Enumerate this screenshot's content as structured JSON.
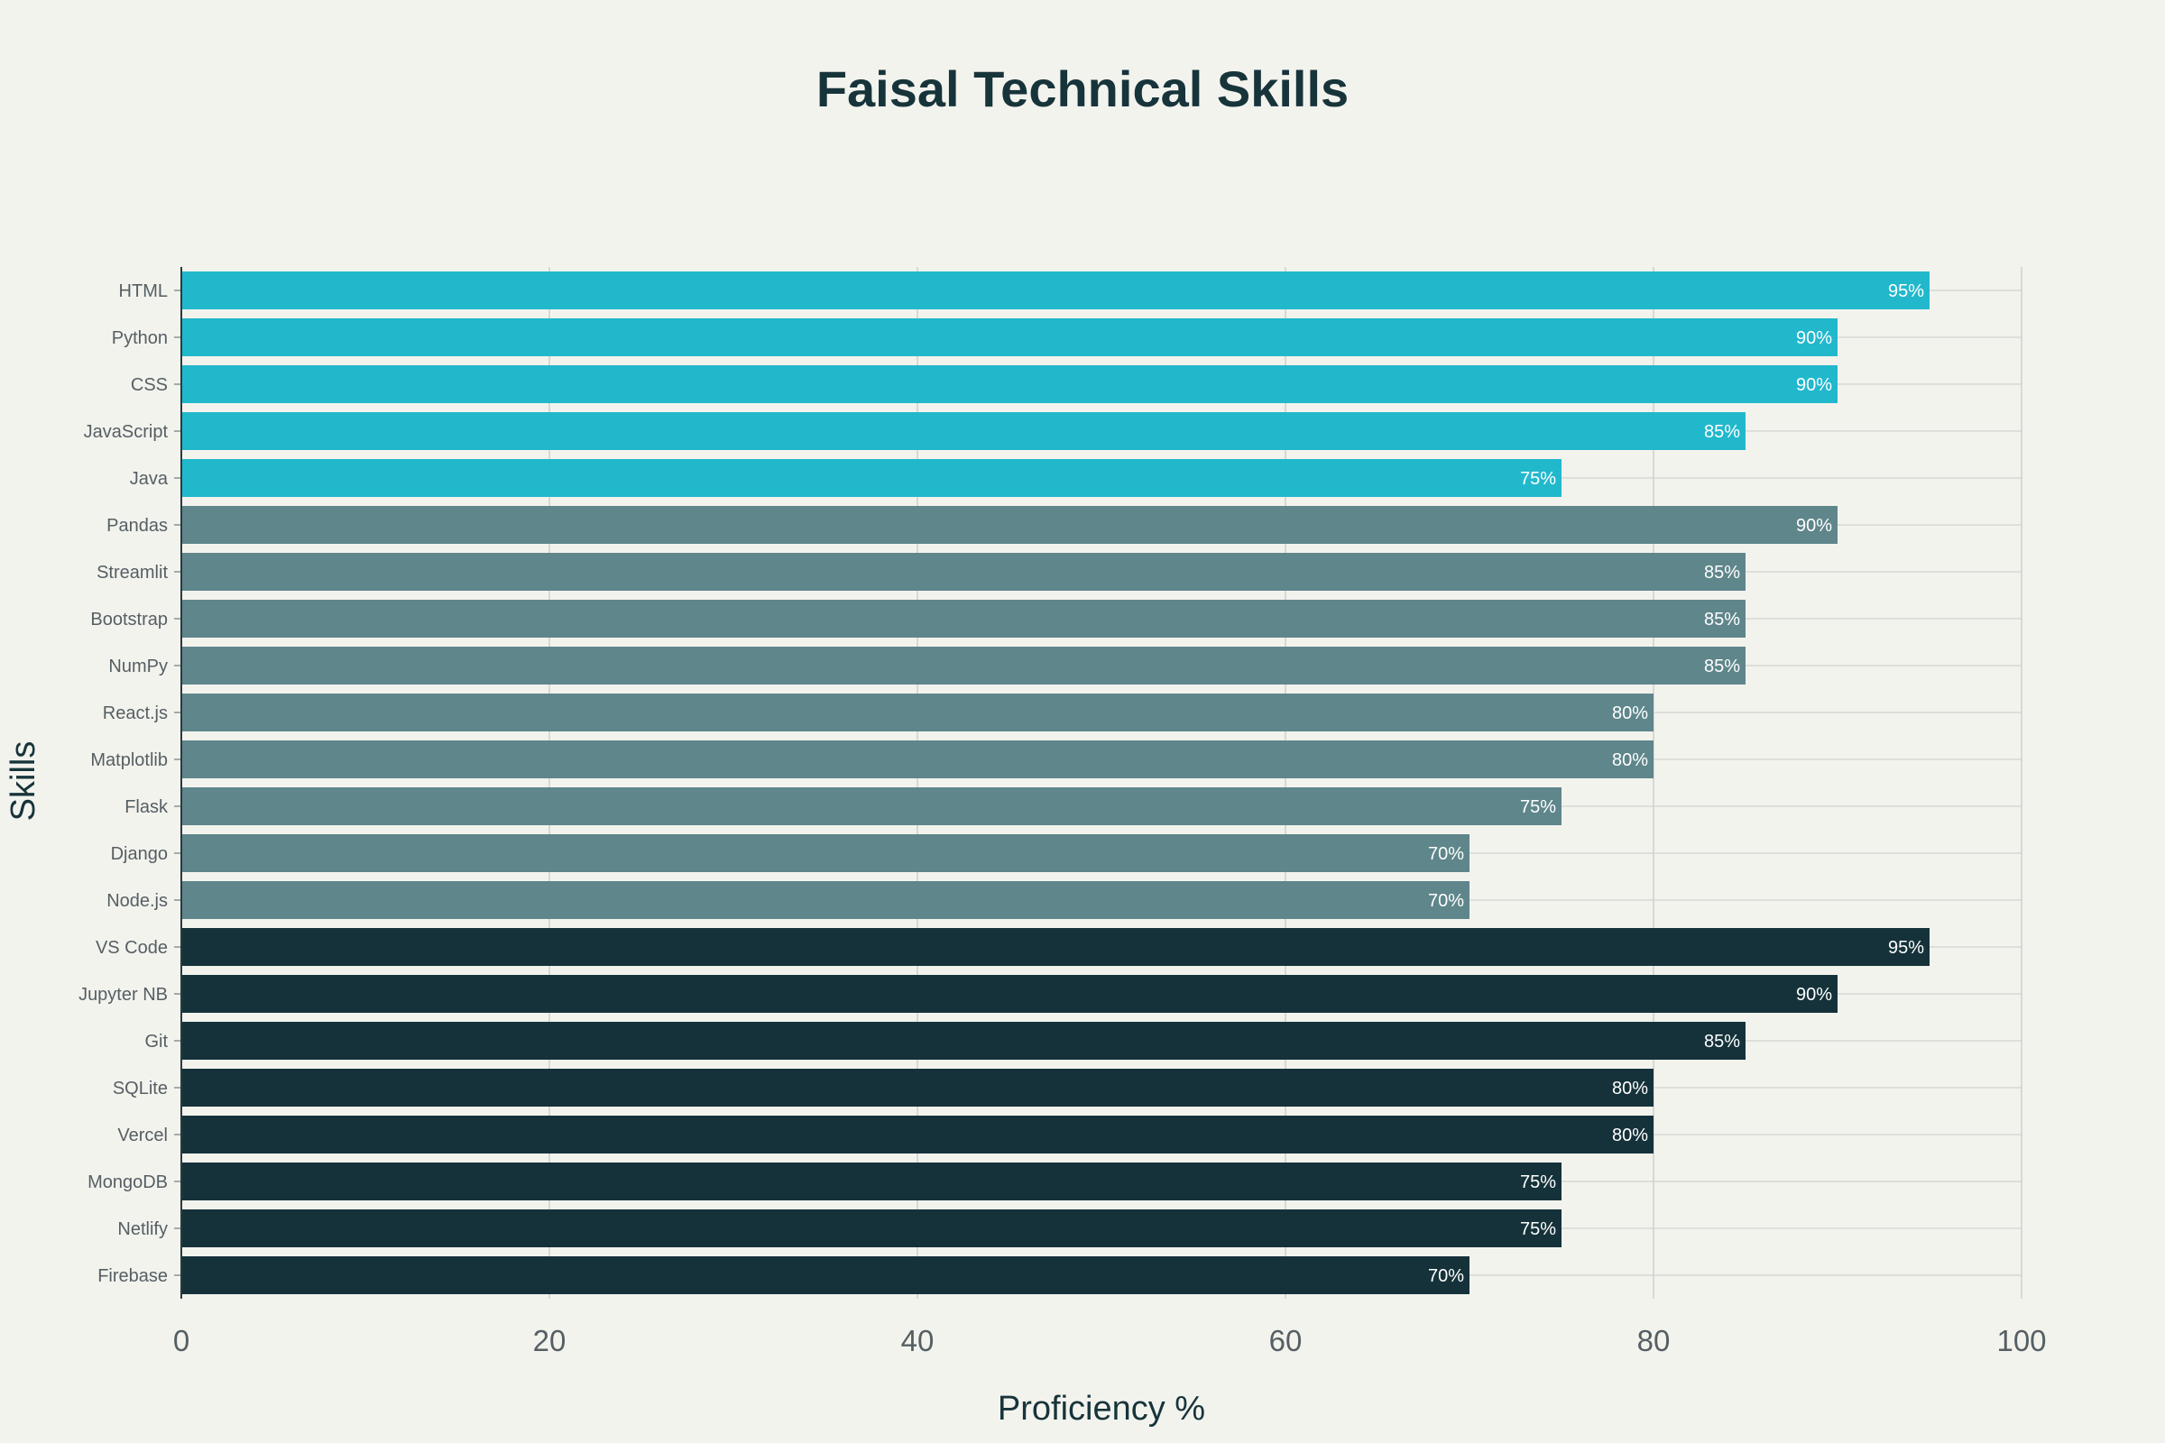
{
  "chart_data": {
    "type": "bar",
    "orientation": "horizontal",
    "title": "Faisal Technical Skills",
    "xlabel": "Proficiency %",
    "ylabel": "Skills",
    "xlim": [
      0,
      100
    ],
    "x_ticks": [
      0,
      20,
      40,
      60,
      80,
      100
    ],
    "value_suffix": "%",
    "grid": true,
    "legend": "none",
    "categories": [
      "HTML",
      "Python",
      "CSS",
      "JavaScript",
      "Java",
      "Pandas",
      "Streamlit",
      "Bootstrap",
      "NumPy",
      "React.js",
      "Matplotlib",
      "Flask",
      "Django",
      "Node.js",
      "VS Code",
      "Jupyter NB",
      "Git",
      "SQLite",
      "Vercel",
      "MongoDB",
      "Netlify",
      "Firebase"
    ],
    "values": [
      95,
      90,
      90,
      85,
      75,
      90,
      85,
      85,
      85,
      80,
      80,
      75,
      70,
      70,
      95,
      90,
      85,
      80,
      80,
      75,
      75,
      70
    ],
    "colors": [
      "#21b8cc",
      "#21b8cc",
      "#21b8cc",
      "#21b8cc",
      "#21b8cc",
      "#5e868b",
      "#5e868b",
      "#5e868b",
      "#5e868b",
      "#5e868b",
      "#5e868b",
      "#5e868b",
      "#5e868b",
      "#5e868b",
      "#15323a",
      "#15323a",
      "#15323a",
      "#15323a",
      "#15323a",
      "#15323a",
      "#15323a",
      "#15323a"
    ],
    "background": "#f3f3ee"
  }
}
